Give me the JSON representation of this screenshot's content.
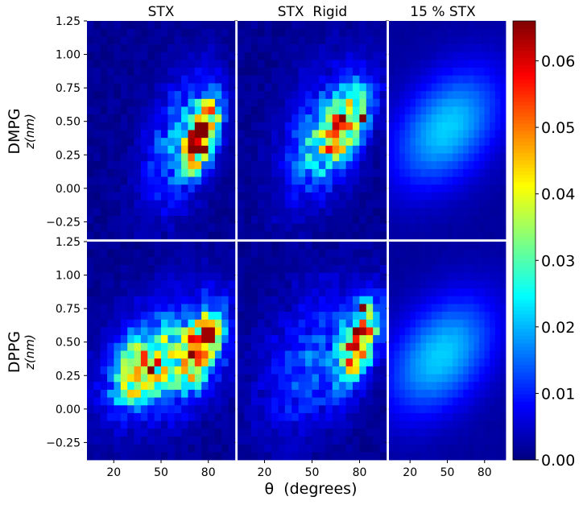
{
  "chart_data": {
    "type": "heatmap",
    "panels_grid": {
      "rows": [
        "DMPG",
        "DPPG"
      ],
      "columns": [
        "STX",
        "STX  Rigid",
        "15 % STX"
      ]
    },
    "column_titles": [
      "STX",
      "STX  Rigid",
      "15 % STX"
    ],
    "row_labels": [
      "DMPG",
      "DPPG"
    ],
    "ylabel": "z(nm)",
    "xlabel": "θ  (degrees)",
    "x_ticks": [
      "20",
      "50",
      "80"
    ],
    "x_tick_values": [
      20,
      50,
      80
    ],
    "xlim": [
      3,
      97
    ],
    "y_ticks": [
      "1.25",
      "1.00",
      "0.75",
      "0.50",
      "0.25",
      "0.00",
      "−0.25"
    ],
    "y_tick_values": [
      1.25,
      1.0,
      0.75,
      0.5,
      0.25,
      0.0,
      -0.25
    ],
    "ylim": [
      -0.38,
      1.25
    ],
    "colorbar": {
      "colormap": "jet",
      "min": 0.0,
      "max": 0.066,
      "ticks": [
        "0.00",
        "0.01",
        "0.02",
        "0.03",
        "0.04",
        "0.05",
        "0.06"
      ],
      "tick_values": [
        0.0,
        0.01,
        0.02,
        0.03,
        0.04,
        0.05,
        0.06
      ]
    },
    "grid": false,
    "panels": [
      {
        "row": "DMPG",
        "col": "STX",
        "style": "sparse",
        "blobs": [
          {
            "theta": 76,
            "z": 0.4,
            "d_theta": 7,
            "d_z": 0.15,
            "tilt": 0.012,
            "amp": 0.06
          },
          {
            "theta": 62,
            "z": 0.35,
            "d_theta": 15,
            "d_z": 0.3,
            "tilt": 0.01,
            "amp": 0.016
          }
        ],
        "peaks": [
          {
            "theta": 76,
            "z": 0.44,
            "v": 0.066
          },
          {
            "theta": 79,
            "z": 0.6,
            "v": 0.05
          }
        ]
      },
      {
        "row": "DMPG",
        "col": "STX  Rigid",
        "style": "sparse",
        "blobs": [
          {
            "theta": 68,
            "z": 0.45,
            "d_theta": 12,
            "d_z": 0.17,
            "tilt": 0.01,
            "amp": 0.04
          },
          {
            "theta": 55,
            "z": 0.4,
            "d_theta": 18,
            "d_z": 0.32,
            "tilt": 0.008,
            "amp": 0.012
          }
        ],
        "peaks": [
          {
            "theta": 82,
            "z": 0.53,
            "v": 0.066
          },
          {
            "theta": 75,
            "z": 0.45,
            "v": 0.052
          }
        ]
      },
      {
        "row": "DMPG",
        "col": "15 % STX",
        "style": "smooth",
        "blobs": [
          {
            "theta": 50,
            "z": 0.45,
            "d_theta": 30,
            "d_z": 0.28,
            "tilt": 0.004,
            "amp": 0.02
          }
        ],
        "peaks": []
      },
      {
        "row": "DPPG",
        "col": "STX",
        "style": "sparse",
        "blobs": [
          {
            "theta": 75,
            "z": 0.45,
            "d_theta": 9,
            "d_z": 0.16,
            "tilt": 0.01,
            "amp": 0.048
          },
          {
            "theta": 38,
            "z": 0.3,
            "d_theta": 12,
            "d_z": 0.16,
            "tilt": 0.006,
            "amp": 0.04
          },
          {
            "theta": 55,
            "z": 0.4,
            "d_theta": 25,
            "d_z": 0.3,
            "tilt": 0.004,
            "amp": 0.016
          }
        ],
        "peaks": [
          {
            "theta": 80,
            "z": 0.55,
            "v": 0.064
          },
          {
            "theta": 40,
            "z": 0.38,
            "v": 0.055
          }
        ]
      },
      {
        "row": "DPPG",
        "col": "STX  Rigid",
        "style": "sparse",
        "blobs": [
          {
            "theta": 80,
            "z": 0.5,
            "d_theta": 8,
            "d_z": 0.17,
            "tilt": 0.012,
            "amp": 0.052
          },
          {
            "theta": 50,
            "z": 0.35,
            "d_theta": 22,
            "d_z": 0.35,
            "tilt": 0.006,
            "amp": 0.012
          }
        ],
        "peaks": [
          {
            "theta": 83,
            "z": 0.74,
            "v": 0.066
          },
          {
            "theta": 79,
            "z": 0.48,
            "v": 0.062
          }
        ]
      },
      {
        "row": "DPPG",
        "col": "15 % STX",
        "style": "smooth",
        "blobs": [
          {
            "theta": 45,
            "z": 0.4,
            "d_theta": 30,
            "d_z": 0.28,
            "tilt": 0.004,
            "amp": 0.02
          }
        ],
        "peaks": []
      }
    ]
  }
}
